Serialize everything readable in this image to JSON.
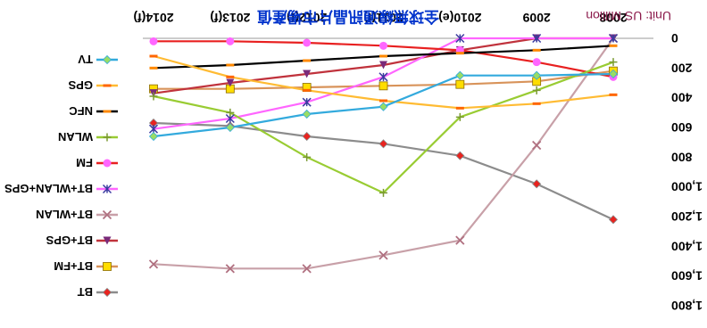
{
  "chart_data": {
    "type": "line",
    "title": "全球無線通訊晶片市場產值",
    "unit_label": "Unit: US Million",
    "categories": [
      "2008",
      "2009",
      "2010(e)",
      "2011(f)",
      "2012(f)",
      "2013(f)",
      "2014(f)"
    ],
    "ylim": [
      0,
      1800
    ],
    "yticks": [
      "0",
      "200",
      "400",
      "600",
      "800",
      "1,000",
      "1,200",
      "1,400",
      "1,600",
      "1,800"
    ],
    "series": [
      {
        "name": "BT",
        "color": "#8c8c8c",
        "marker": "diamond",
        "marker_color": "#e8231f",
        "values": [
          1220,
          980,
          790,
          710,
          660,
          590,
          570
        ]
      },
      {
        "name": "BT+FM",
        "color": "#d8935a",
        "marker": "square",
        "marker_color": "#ffdd00",
        "values": [
          220,
          290,
          310,
          320,
          330,
          340,
          340
        ]
      },
      {
        "name": "BT+GPS",
        "color": "#c0323c",
        "marker": "triangle",
        "marker_color": "#7a2a7a",
        "values": [
          0,
          0,
          80,
          180,
          240,
          300,
          370
        ]
      },
      {
        "name": "BT+WLAN",
        "color": "#c8a0a8",
        "marker": "x",
        "marker_color": "#b07080",
        "values": [
          0,
          720,
          1360,
          1460,
          1550,
          1550,
          1520
        ]
      },
      {
        "name": "BT+WLAN+GPS",
        "color": "#ff66ff",
        "marker": "asterisk",
        "marker_color": "#3a3aa0",
        "values": [
          0,
          0,
          0,
          260,
          430,
          540,
          610
        ]
      },
      {
        "name": "FM",
        "color": "#e82020",
        "marker": "circle",
        "marker_color": "#ff66ff",
        "values": [
          260,
          160,
          80,
          50,
          30,
          20,
          20
        ]
      },
      {
        "name": "WLAN",
        "color": "#99cc33",
        "marker": "plus",
        "marker_color": "#7a9a30",
        "values": [
          160,
          350,
          530,
          1040,
          800,
          500,
          390
        ]
      },
      {
        "name": "NFC",
        "color": "#000000",
        "marker": "dash",
        "marker_color": "#ff8800",
        "values": [
          50,
          80,
          100,
          120,
          150,
          180,
          200
        ]
      },
      {
        "name": "GPS",
        "color": "#ffbb33",
        "marker": "dash",
        "marker_color": "#ff6600",
        "values": [
          380,
          440,
          470,
          420,
          350,
          260,
          120
        ]
      },
      {
        "name": "TV",
        "color": "#33aadd",
        "marker": "diamond",
        "marker_color": "#99dd66",
        "values": [
          240,
          250,
          250,
          460,
          510,
          600,
          660
        ]
      }
    ]
  }
}
